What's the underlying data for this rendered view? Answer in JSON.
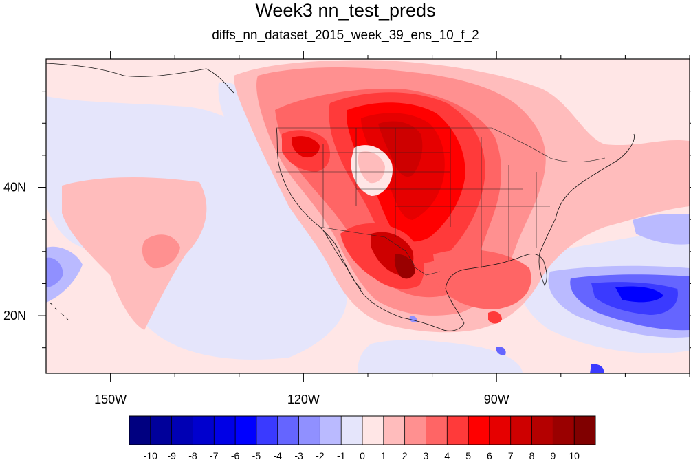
{
  "title": "Week3 nn_test_preds",
  "subtitle": "diffs_nn_dataset_2015_week_39_ens_10_f_2",
  "map": {
    "lon_range": [
      -160,
      -60
    ],
    "lat_range": [
      11,
      60
    ],
    "lon_ticks": [
      {
        "value": -150,
        "label": "150W"
      },
      {
        "value": -120,
        "label": "120W"
      },
      {
        "value": -90,
        "label": "90W"
      }
    ],
    "lat_ticks": [
      {
        "value": 40,
        "label": "40N"
      },
      {
        "value": 20,
        "label": "20N"
      }
    ]
  },
  "colorbar": {
    "levels": [
      "-10",
      "-9",
      "-8",
      "-7",
      "-6",
      "-5",
      "-4",
      "-3",
      "-2",
      "-1",
      "0",
      "1",
      "2",
      "3",
      "4",
      "5",
      "6",
      "7",
      "8",
      "9",
      "10"
    ],
    "colors": [
      "#000080",
      "#00009a",
      "#0000b4",
      "#0000ce",
      "#0000e6",
      "#0000ff",
      "#3a3aff",
      "#6565ff",
      "#9090ff",
      "#babaff",
      "#e5e5fb",
      "#ffe6e6",
      "#ffbcbc",
      "#ff9090",
      "#ff6565",
      "#ff3a3a",
      "#ff0000",
      "#e60000",
      "#ce0000",
      "#b40000",
      "#9a0000",
      "#800000"
    ]
  }
}
